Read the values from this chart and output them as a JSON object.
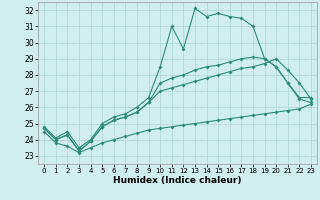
{
  "xlabel": "Humidex (Indice chaleur)",
  "bg_color": "#d0eeee",
  "grid_color": "#aed4d4",
  "line_color": "#2e8b7a",
  "xlim": [
    -0.5,
    23.5
  ],
  "ylim": [
    22.5,
    32.5
  ],
  "xticks": [
    0,
    1,
    2,
    3,
    4,
    5,
    6,
    7,
    8,
    9,
    10,
    11,
    12,
    13,
    14,
    15,
    16,
    17,
    18,
    19,
    20,
    21,
    22,
    23
  ],
  "yticks": [
    23,
    24,
    25,
    26,
    27,
    28,
    29,
    30,
    31,
    32
  ],
  "line1_x": [
    0,
    1,
    2,
    3,
    4,
    5,
    6,
    7,
    8,
    9,
    10,
    11,
    12,
    13,
    14,
    15,
    16,
    17,
    18,
    19,
    20,
    21,
    22,
    23
  ],
  "line1_y": [
    24.8,
    24.1,
    24.5,
    23.5,
    24.0,
    25.0,
    25.4,
    25.6,
    26.0,
    26.6,
    28.5,
    31.0,
    29.6,
    32.1,
    31.6,
    31.8,
    31.6,
    31.5,
    31.0,
    29.0,
    28.5,
    27.5,
    26.6,
    26.6
  ],
  "line2_x": [
    0,
    1,
    2,
    3,
    4,
    5,
    6,
    7,
    8,
    9,
    10,
    11,
    12,
    13,
    14,
    15,
    16,
    17,
    18,
    19,
    20,
    21,
    22,
    23
  ],
  "line2_y": [
    24.7,
    24.0,
    24.3,
    23.3,
    23.9,
    24.8,
    25.2,
    25.4,
    25.7,
    26.3,
    27.5,
    27.8,
    28.0,
    28.3,
    28.5,
    28.6,
    28.8,
    29.0,
    29.1,
    29.0,
    28.5,
    27.5,
    26.5,
    26.3
  ],
  "line3_x": [
    0,
    1,
    2,
    3,
    4,
    5,
    6,
    7,
    8,
    9,
    10,
    11,
    12,
    13,
    14,
    15,
    16,
    17,
    18,
    19,
    20,
    21,
    22,
    23
  ],
  "line3_y": [
    24.7,
    24.0,
    24.3,
    23.3,
    23.9,
    24.8,
    25.2,
    25.4,
    25.7,
    26.3,
    27.0,
    27.2,
    27.4,
    27.6,
    27.8,
    28.0,
    28.2,
    28.4,
    28.5,
    28.7,
    29.0,
    28.3,
    27.5,
    26.5
  ],
  "line4_x": [
    0,
    1,
    2,
    3,
    4,
    5,
    6,
    7,
    8,
    9,
    10,
    11,
    12,
    13,
    14,
    15,
    16,
    17,
    18,
    19,
    20,
    21,
    22,
    23
  ],
  "line4_y": [
    24.5,
    23.8,
    23.6,
    23.2,
    23.5,
    23.8,
    24.0,
    24.2,
    24.4,
    24.6,
    24.7,
    24.8,
    24.9,
    25.0,
    25.1,
    25.2,
    25.3,
    25.4,
    25.5,
    25.6,
    25.7,
    25.8,
    25.9,
    26.2
  ]
}
